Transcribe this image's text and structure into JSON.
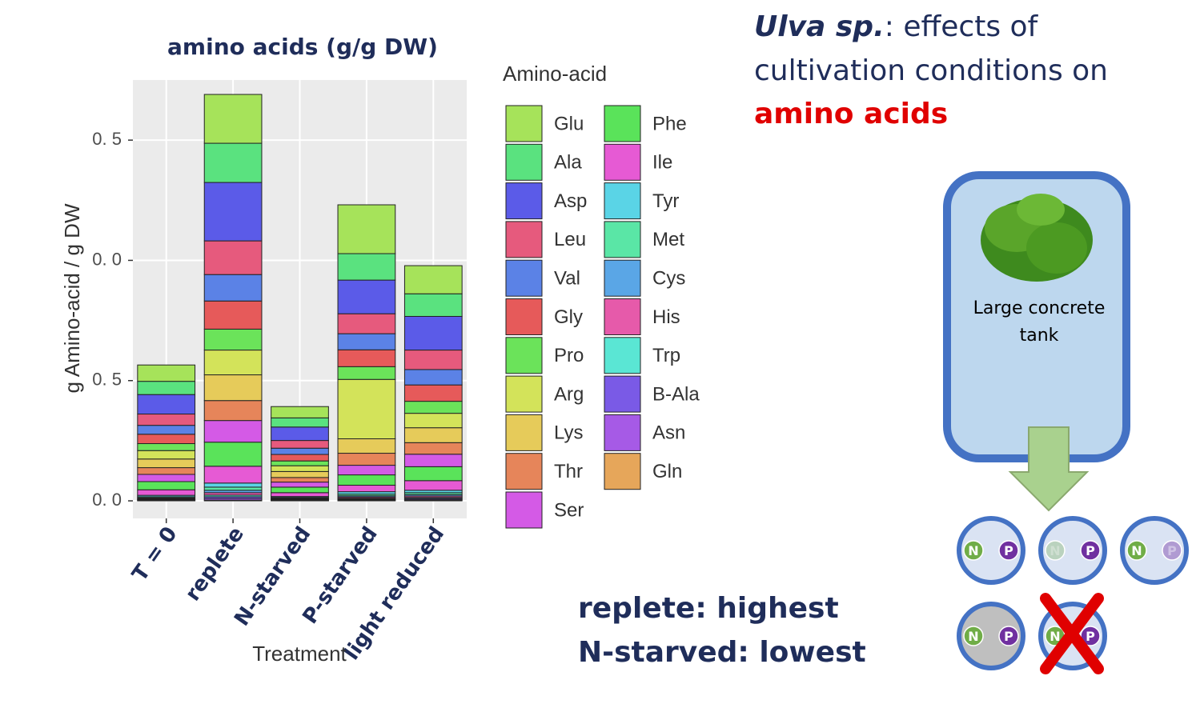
{
  "chart_data": {
    "type": "stacked_bar",
    "title": "amino acids (g/g DW)",
    "y_label": "g Amino-acid / g DW",
    "x_label": "Treatment",
    "legend_title": "Amino-acid",
    "categories": [
      "T = 0",
      "replete",
      "N-starved",
      "P-starved",
      "light reduced"
    ],
    "ylim": [
      -0.0073,
      0.175
    ],
    "yticks": [
      {
        "value": 0,
        "label": "0. 0"
      },
      {
        "value": 0.05,
        "label": "0. 5"
      },
      {
        "value": 0.1,
        "label": "0. 0"
      },
      {
        "value": 0.15,
        "label": "0. 5"
      }
    ],
    "grid": true,
    "series": [
      {
        "name": "Glu",
        "color": "#a6e35a",
        "values": [
          0.0068,
          0.0203,
          0.0047,
          0.0203,
          0.0117
        ]
      },
      {
        "name": "Ala",
        "color": "#5ae27f",
        "values": [
          0.0055,
          0.0163,
          0.0038,
          0.011,
          0.0094
        ]
      },
      {
        "name": "Asp",
        "color": "#5b5be8",
        "values": [
          0.0081,
          0.0243,
          0.0056,
          0.014,
          0.014
        ]
      },
      {
        "name": "Leu",
        "color": "#e65a7d",
        "values": [
          0.0047,
          0.014,
          0.0032,
          0.0083,
          0.0081
        ]
      },
      {
        "name": "Val",
        "color": "#5b82e6",
        "values": [
          0.0037,
          0.011,
          0.0026,
          0.0067,
          0.0064
        ]
      },
      {
        "name": "Gly",
        "color": "#e65a5a",
        "values": [
          0.0039,
          0.0117,
          0.0027,
          0.007,
          0.0068
        ]
      },
      {
        "name": "Pro",
        "color": "#6be35a",
        "values": [
          0.0029,
          0.0087,
          0.002,
          0.0053,
          0.005
        ]
      },
      {
        "name": "Arg",
        "color": "#d3e35a",
        "values": [
          0.0035,
          0.0103,
          0.0024,
          0.0247,
          0.006
        ]
      },
      {
        "name": "Lys",
        "color": "#e6cb5a",
        "values": [
          0.0036,
          0.0107,
          0.0025,
          0.006,
          0.0062
        ]
      },
      {
        "name": "Thr",
        "color": "#e6855a",
        "values": [
          0.0028,
          0.0083,
          0.0019,
          0.005,
          0.0048
        ]
      },
      {
        "name": "Ser",
        "color": "#d45ae6",
        "values": [
          0.003,
          0.009,
          0.0021,
          0.004,
          0.0052
        ]
      },
      {
        "name": "Phe",
        "color": "#5ae35a",
        "values": [
          0.0034,
          0.01,
          0.0023,
          0.0043,
          0.0058
        ]
      },
      {
        "name": "Ile",
        "color": "#e65ad4",
        "values": [
          0.0023,
          0.007,
          0.0016,
          0.0027,
          0.004
        ]
      },
      {
        "name": "Tyr",
        "color": "#5ad4e6",
        "values": [
          0.0006,
          0.0017,
          0.0004,
          0.001,
          0.001
        ]
      },
      {
        "name": "Met",
        "color": "#5ae6a6",
        "values": [
          0.0004,
          0.0013,
          0.0003,
          0.0007,
          0.0008
        ]
      },
      {
        "name": "Cys",
        "color": "#5aa6e6",
        "values": [
          0.0003,
          0.001,
          0.0002,
          0.0005,
          0.0006
        ]
      },
      {
        "name": "His",
        "color": "#e65aaa",
        "values": [
          0.0003,
          0.001,
          0.0002,
          0.0005,
          0.0006
        ]
      },
      {
        "name": "Trp",
        "color": "#5ae6d4",
        "values": [
          0.0002,
          0.0007,
          0.0002,
          0.0003,
          0.0004
        ]
      },
      {
        "name": "B-Ala",
        "color": "#7a5ae6",
        "values": [
          0.0002,
          0.0007,
          0.0002,
          0.0003,
          0.0004
        ]
      },
      {
        "name": "Asn",
        "color": "#a65ae6",
        "values": [
          0.0002,
          0.0007,
          0.0002,
          0.0003,
          0.0004
        ]
      },
      {
        "name": "Gln",
        "color": "#e6a65a",
        "values": [
          0.0001,
          0.0003,
          0.0001,
          0.0002,
          0.0002
        ]
      }
    ]
  },
  "slide": {
    "heading_italic": "Ulva sp.",
    "heading_rest": ": effects of",
    "heading_line2": "cultivation conditions on",
    "heading_red": "amino acids",
    "tank_label": [
      "Large concrete",
      "tank"
    ],
    "summary": [
      "replete: highest",
      "N-starved: lowest"
    ],
    "circle_labels": [
      "N",
      "P"
    ]
  }
}
